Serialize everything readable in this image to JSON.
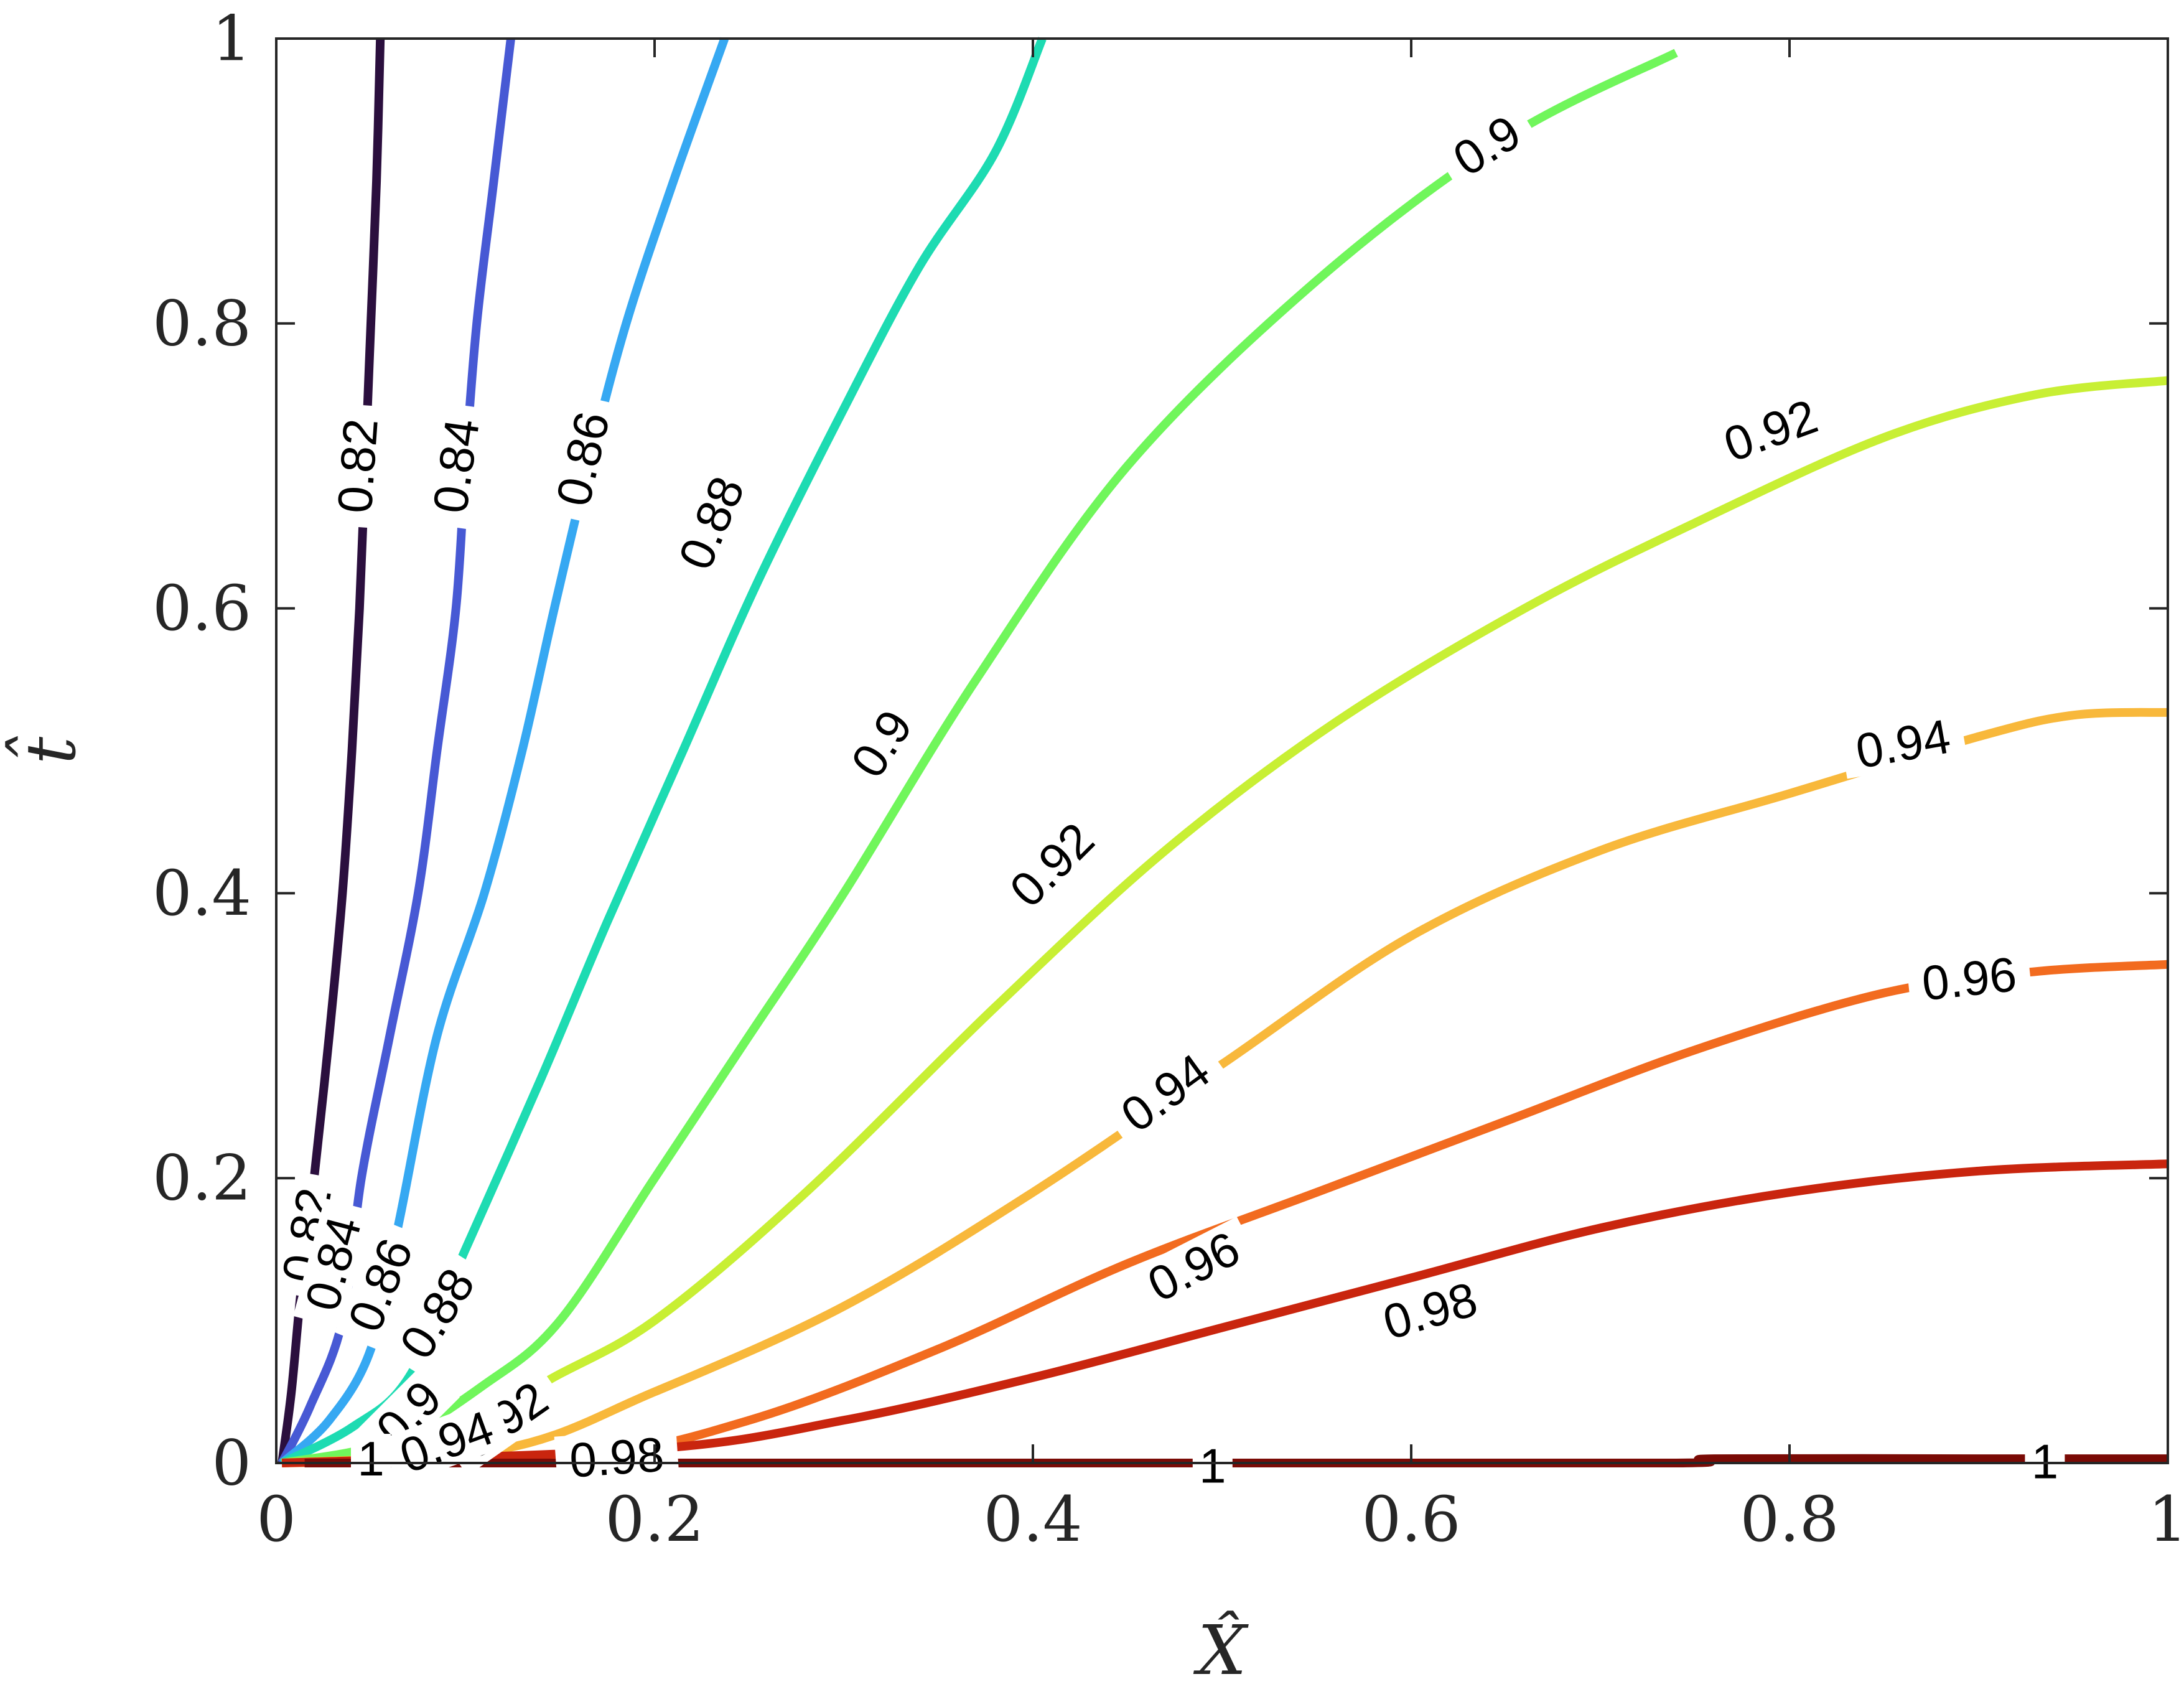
{
  "chart_data": {
    "type": "contour",
    "xlabel": "X̂",
    "ylabel": "t̂",
    "xlim": [
      0,
      1
    ],
    "ylim": [
      0,
      1
    ],
    "xticks": [
      0,
      0.2,
      0.4,
      0.6,
      0.8,
      1
    ],
    "yticks": [
      0,
      0.2,
      0.4,
      0.6,
      0.8,
      1
    ],
    "xtick_labels": [
      "0",
      "0.2",
      "0.4",
      "0.6",
      "0.8",
      "1"
    ],
    "ytick_labels": [
      "0",
      "0.2",
      "0.4",
      "0.6",
      "0.8",
      "1"
    ],
    "grid": false,
    "levels": [
      {
        "level": "0.82",
        "color": "#2b0f3e",
        "points": [
          [
            0.003,
            0.0
          ],
          [
            0.008,
            0.05
          ],
          [
            0.013,
            0.12
          ],
          [
            0.02,
            0.2
          ],
          [
            0.028,
            0.3
          ],
          [
            0.035,
            0.4
          ],
          [
            0.04,
            0.5
          ],
          [
            0.044,
            0.6
          ],
          [
            0.047,
            0.7
          ],
          [
            0.05,
            0.8
          ],
          [
            0.053,
            0.9
          ],
          [
            0.055,
            1.0
          ]
        ],
        "labels": [
          {
            "x": 0.043,
            "y": 0.7,
            "angle": -86
          },
          {
            "x": 0.016,
            "y": 0.16,
            "angle": -80
          }
        ]
      },
      {
        "level": "0.84",
        "color": "#4759d4",
        "points": [
          [
            0.003,
            0.0
          ],
          [
            0.018,
            0.04
          ],
          [
            0.035,
            0.1
          ],
          [
            0.045,
            0.2
          ],
          [
            0.06,
            0.3
          ],
          [
            0.075,
            0.4
          ],
          [
            0.085,
            0.5
          ],
          [
            0.095,
            0.6
          ],
          [
            0.1,
            0.7
          ],
          [
            0.106,
            0.8
          ],
          [
            0.115,
            0.9
          ],
          [
            0.124,
            1.0
          ]
        ],
        "labels": [
          {
            "x": 0.095,
            "y": 0.7,
            "angle": -82
          },
          {
            "x": 0.03,
            "y": 0.14,
            "angle": -75
          }
        ]
      },
      {
        "level": "0.86",
        "color": "#36a8f2",
        "points": [
          [
            0.003,
            0.0
          ],
          [
            0.028,
            0.03
          ],
          [
            0.05,
            0.08
          ],
          [
            0.065,
            0.17
          ],
          [
            0.085,
            0.3
          ],
          [
            0.11,
            0.4
          ],
          [
            0.13,
            0.5
          ],
          [
            0.147,
            0.6
          ],
          [
            0.165,
            0.7
          ],
          [
            0.185,
            0.8
          ],
          [
            0.21,
            0.9
          ],
          [
            0.237,
            1.0
          ]
        ],
        "labels": [
          {
            "x": 0.162,
            "y": 0.705,
            "angle": -77
          },
          {
            "x": 0.055,
            "y": 0.125,
            "angle": -68
          }
        ]
      },
      {
        "level": "0.88",
        "color": "#1ddbb2",
        "points": [
          [
            0.003,
            0.0
          ],
          [
            0.04,
            0.025
          ],
          [
            0.07,
            0.06
          ],
          [
            0.1,
            0.15
          ],
          [
            0.14,
            0.27
          ],
          [
            0.175,
            0.38
          ],
          [
            0.215,
            0.5
          ],
          [
            0.255,
            0.62
          ],
          [
            0.3,
            0.74
          ],
          [
            0.34,
            0.84
          ],
          [
            0.38,
            0.92
          ],
          [
            0.405,
            1.0
          ]
        ],
        "labels": [
          {
            "x": 0.23,
            "y": 0.66,
            "angle": -67
          },
          {
            "x": 0.085,
            "y": 0.105,
            "angle": -58
          }
        ]
      },
      {
        "level": "0.9",
        "color": "#70f65b",
        "points": [
          [
            0.003,
            0.0
          ],
          [
            0.06,
            0.015
          ],
          [
            0.11,
            0.055
          ],
          [
            0.15,
            0.1
          ],
          [
            0.2,
            0.2
          ],
          [
            0.25,
            0.3
          ],
          [
            0.3,
            0.4
          ],
          [
            0.37,
            0.55
          ],
          [
            0.45,
            0.7
          ],
          [
            0.55,
            0.83
          ],
          [
            0.65,
            0.93
          ],
          [
            0.74,
            0.99
          ]
        ],
        "labels": [
          {
            "x": 0.32,
            "y": 0.505,
            "angle": -57
          },
          {
            "x": 0.64,
            "y": 0.925,
            "angle": -32
          },
          {
            "x": 0.07,
            "y": 0.035,
            "angle": -45
          }
        ]
      },
      {
        "level": "0.92",
        "color": "#c8ef34",
        "points": [
          [
            0.003,
            0.0
          ],
          [
            0.09,
            0.01
          ],
          [
            0.14,
            0.055
          ],
          [
            0.2,
            0.1
          ],
          [
            0.28,
            0.19
          ],
          [
            0.38,
            0.32
          ],
          [
            0.47,
            0.43
          ],
          [
            0.56,
            0.52
          ],
          [
            0.66,
            0.6
          ],
          [
            0.75,
            0.66
          ],
          [
            0.85,
            0.72
          ],
          [
            0.93,
            0.75
          ],
          [
            1.0,
            0.76
          ]
        ],
        "labels": [
          {
            "x": 0.41,
            "y": 0.42,
            "angle": -45
          },
          {
            "x": 0.79,
            "y": 0.725,
            "angle": -20
          },
          {
            "x": 0.12,
            "y": 0.03,
            "angle": -35
          }
        ]
      },
      {
        "level": "0.94",
        "color": "#f8b83b",
        "points": [
          [
            0.003,
            0.0
          ],
          [
            0.12,
            0.01
          ],
          [
            0.2,
            0.05
          ],
          [
            0.3,
            0.11
          ],
          [
            0.4,
            0.19
          ],
          [
            0.5,
            0.28
          ],
          [
            0.6,
            0.37
          ],
          [
            0.7,
            0.43
          ],
          [
            0.8,
            0.47
          ],
          [
            0.9,
            0.51
          ],
          [
            0.95,
            0.525
          ],
          [
            1.0,
            0.527
          ]
        ],
        "labels": [
          {
            "x": 0.47,
            "y": 0.26,
            "angle": -36
          },
          {
            "x": 0.86,
            "y": 0.505,
            "angle": -10
          },
          {
            "x": 0.09,
            "y": 0.015,
            "angle": -20
          }
        ]
      },
      {
        "level": "0.96",
        "color": "#f26b1f",
        "points": [
          [
            0.003,
            0.0
          ],
          [
            0.16,
            0.005
          ],
          [
            0.25,
            0.03
          ],
          [
            0.35,
            0.08
          ],
          [
            0.45,
            0.14
          ],
          [
            0.55,
            0.19
          ],
          [
            0.65,
            0.24
          ],
          [
            0.75,
            0.29
          ],
          [
            0.85,
            0.33
          ],
          [
            0.93,
            0.345
          ],
          [
            1.0,
            0.35
          ]
        ],
        "labels": [
          {
            "x": 0.485,
            "y": 0.138,
            "angle": -27
          },
          {
            "x": 0.895,
            "y": 0.34,
            "angle": -6
          }
        ]
      },
      {
        "level": "0.98",
        "color": "#c9250e",
        "points": [
          [
            0.003,
            0.0
          ],
          [
            0.2,
            0.01
          ],
          [
            0.3,
            0.03
          ],
          [
            0.4,
            0.06
          ],
          [
            0.5,
            0.095
          ],
          [
            0.6,
            0.13
          ],
          [
            0.7,
            0.165
          ],
          [
            0.8,
            0.19
          ],
          [
            0.9,
            0.205
          ],
          [
            1.0,
            0.21
          ]
        ],
        "labels": [
          {
            "x": 0.61,
            "y": 0.107,
            "angle": -16
          },
          {
            "x": 0.18,
            "y": 0.004,
            "angle": -4
          }
        ]
      },
      {
        "level": "1",
        "color": "#7a0a05",
        "points": [
          [
            0.015,
            0.0
          ],
          [
            0.5,
            0.0
          ],
          [
            0.74,
            0.0
          ],
          [
            0.76,
            0.003
          ],
          [
            0.9,
            0.003
          ],
          [
            1.0,
            0.003
          ]
        ],
        "labels": [
          {
            "x": 0.495,
            "y": -0.002,
            "angle": 0
          },
          {
            "x": 0.935,
            "y": 0.001,
            "angle": 0
          },
          {
            "x": 0.05,
            "y": 0.003,
            "angle": 0
          }
        ]
      }
    ]
  }
}
